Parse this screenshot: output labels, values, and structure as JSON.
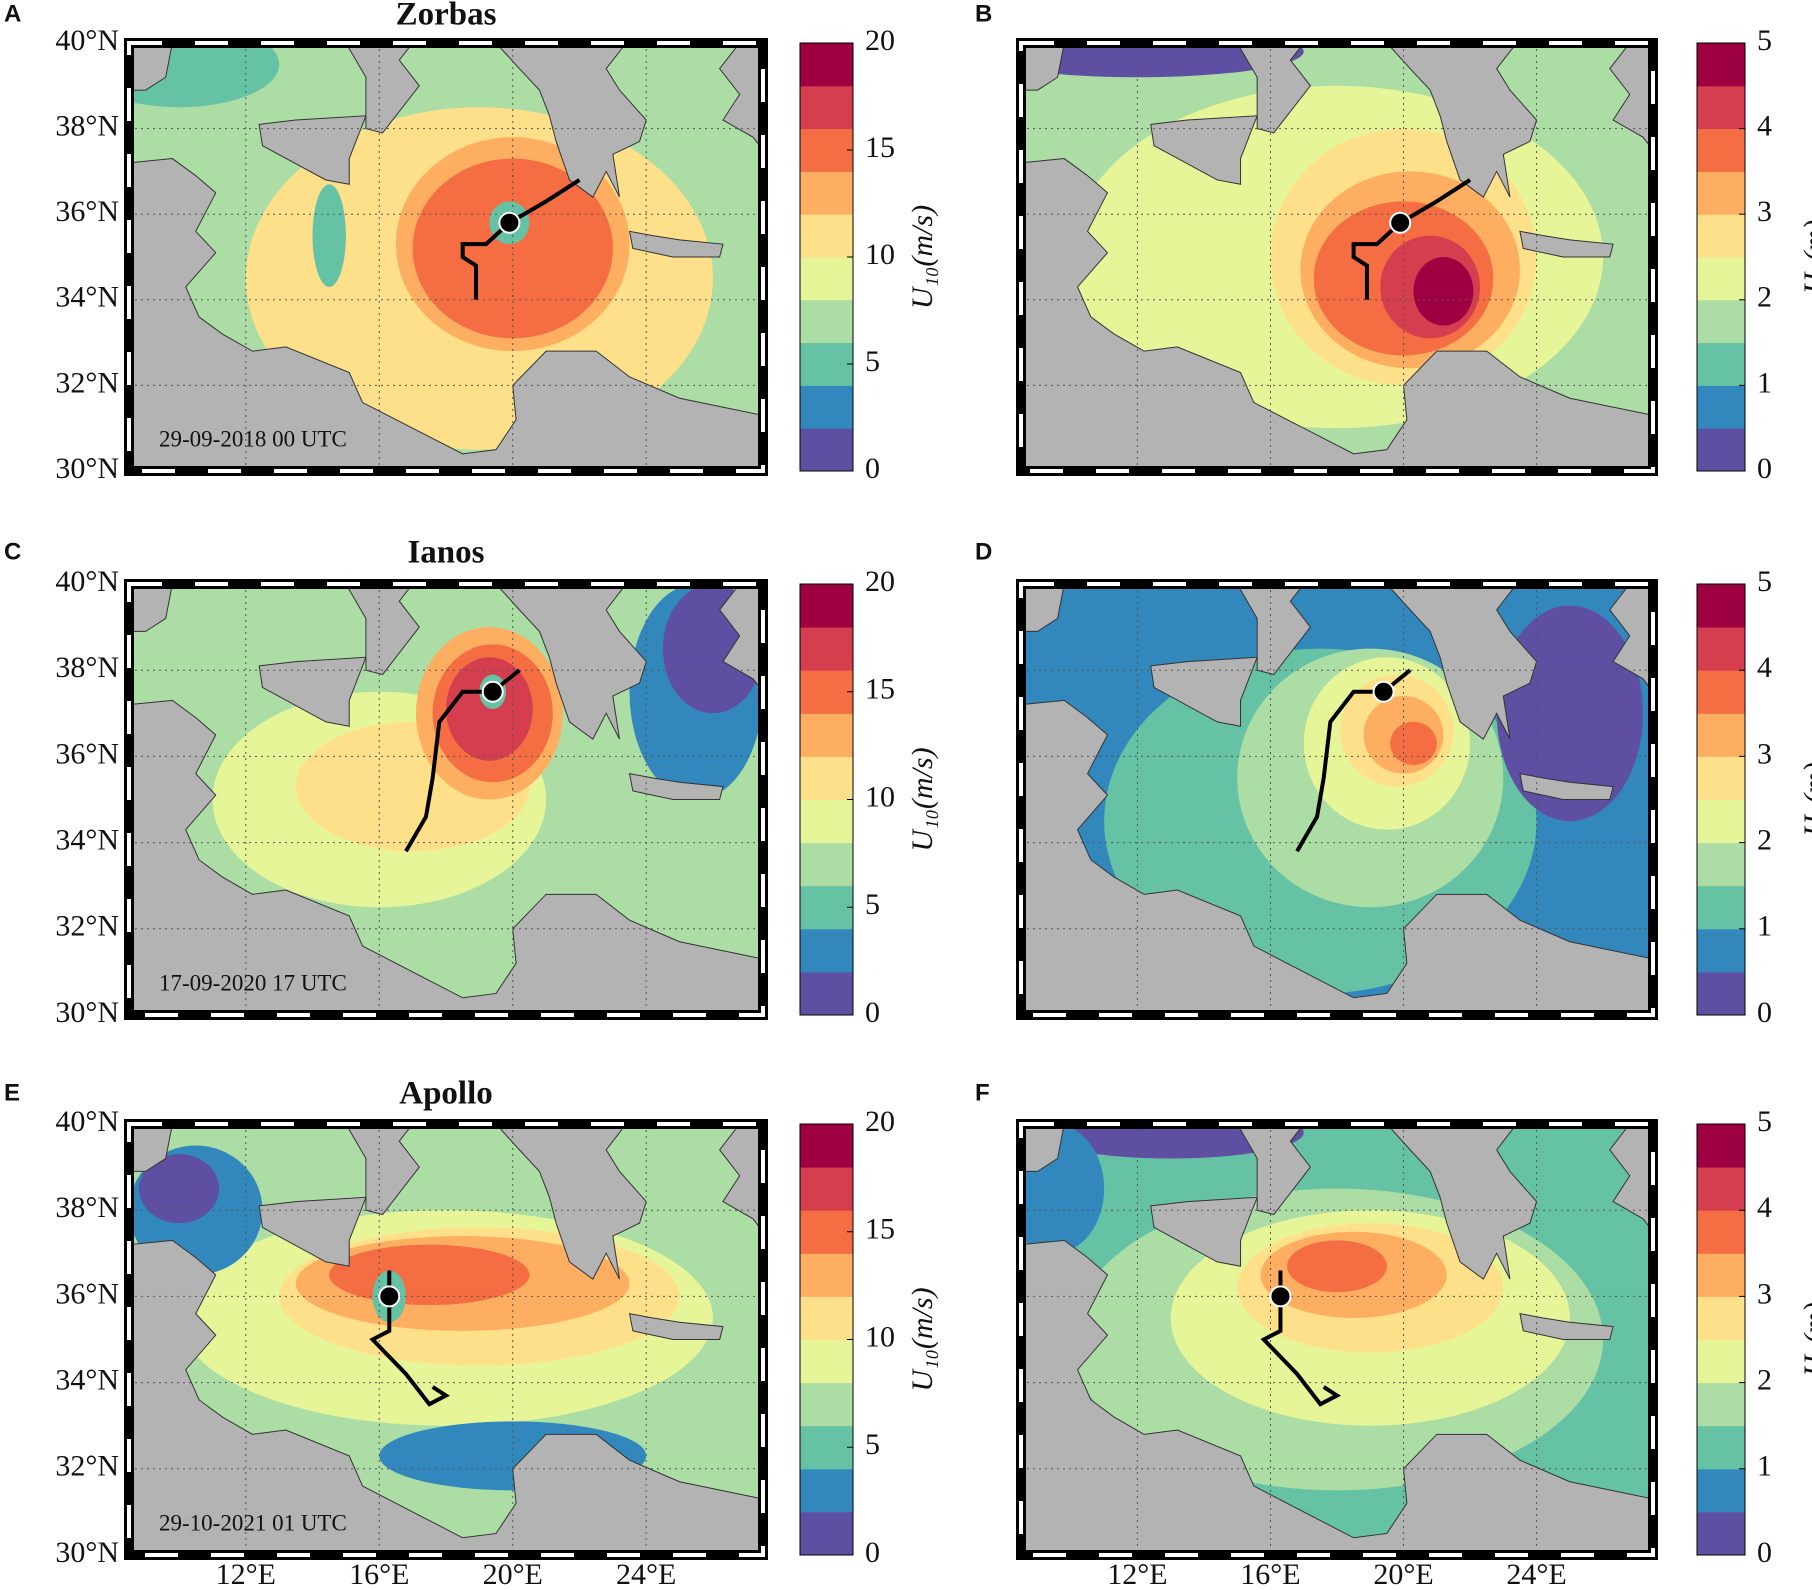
{
  "chart_data": [
    {
      "type": "map",
      "panel_label": "A",
      "title": "Zorbas",
      "annotation": "29-09-2018 00 UTC",
      "xlim": [
        8.5,
        27.5
      ],
      "ylim": [
        30,
        40
      ],
      "grid": true,
      "yticks": [
        {
          "value": 30,
          "label": "30°N"
        },
        {
          "value": 32,
          "label": "32°N"
        },
        {
          "value": 34,
          "label": "34°N"
        },
        {
          "value": 36,
          "label": "36°N"
        },
        {
          "value": 38,
          "label": "38°N"
        },
        {
          "value": 40,
          "label": "40°N"
        }
      ],
      "colorbar": {
        "label": "U₁₀(m/s)",
        "lim": [
          0,
          20
        ],
        "ticks": [
          0,
          5,
          10,
          15,
          20
        ],
        "colors": [
          "#5e4fa2",
          "#3288bd",
          "#66c2a5",
          "#abdda4",
          "#e6f598",
          "#fee08b",
          "#fdae61",
          "#f46d43",
          "#d53e4f",
          "#9e0142"
        ]
      }
    },
    {
      "type": "map",
      "panel_label": "B",
      "xlim": [
        8.5,
        27.5
      ],
      "ylim": [
        30,
        40
      ],
      "grid": true,
      "colorbar": {
        "label": "Hₛ(m)",
        "lim": [
          0,
          5
        ],
        "ticks": [
          0,
          1,
          2,
          3,
          4,
          5
        ],
        "colors": [
          "#5e4fa2",
          "#3288bd",
          "#66c2a5",
          "#abdda4",
          "#e6f598",
          "#fee08b",
          "#fdae61",
          "#f46d43",
          "#d53e4f",
          "#9e0142"
        ]
      }
    },
    {
      "type": "map",
      "panel_label": "C",
      "title": "Ianos",
      "annotation": "17-09-2020 17 UTC",
      "xlim": [
        8.5,
        27.5
      ],
      "ylim": [
        30,
        40
      ],
      "grid": true,
      "yticks": [
        {
          "value": 30,
          "label": "30°N"
        },
        {
          "value": 32,
          "label": "32°N"
        },
        {
          "value": 34,
          "label": "34°N"
        },
        {
          "value": 36,
          "label": "36°N"
        },
        {
          "value": 38,
          "label": "38°N"
        },
        {
          "value": 40,
          "label": "40°N"
        }
      ],
      "colorbar": {
        "label": "U₁₀(m/s)",
        "lim": [
          0,
          20
        ],
        "ticks": [
          0,
          5,
          10,
          15,
          20
        ],
        "colors": [
          "#5e4fa2",
          "#3288bd",
          "#66c2a5",
          "#abdda4",
          "#e6f598",
          "#fee08b",
          "#fdae61",
          "#f46d43",
          "#d53e4f",
          "#9e0142"
        ]
      }
    },
    {
      "type": "map",
      "panel_label": "D",
      "xlim": [
        8.5,
        27.5
      ],
      "ylim": [
        30,
        40
      ],
      "grid": true,
      "colorbar": {
        "label": "Hₛ(m)",
        "lim": [
          0,
          5
        ],
        "ticks": [
          0,
          1,
          2,
          3,
          4,
          5
        ],
        "colors": [
          "#5e4fa2",
          "#3288bd",
          "#66c2a5",
          "#abdda4",
          "#e6f598",
          "#fee08b",
          "#fdae61",
          "#f46d43",
          "#d53e4f",
          "#9e0142"
        ]
      }
    },
    {
      "type": "map",
      "panel_label": "E",
      "title": "Apollo",
      "annotation": "29-10-2021 01 UTC",
      "xlim": [
        8.5,
        27.5
      ],
      "ylim": [
        30,
        40
      ],
      "grid": true,
      "xticks": [
        {
          "value": 12,
          "label": "12°E"
        },
        {
          "value": 16,
          "label": "16°E"
        },
        {
          "value": 20,
          "label": "20°E"
        },
        {
          "value": 24,
          "label": "24°E"
        }
      ],
      "yticks": [
        {
          "value": 30,
          "label": "30°N"
        },
        {
          "value": 32,
          "label": "32°N"
        },
        {
          "value": 34,
          "label": "34°N"
        },
        {
          "value": 36,
          "label": "36°N"
        },
        {
          "value": 38,
          "label": "38°N"
        },
        {
          "value": 40,
          "label": "40°N"
        }
      ],
      "colorbar": {
        "label": "U₁₀(m/s)",
        "lim": [
          0,
          20
        ],
        "ticks": [
          0,
          5,
          10,
          15,
          20
        ],
        "colors": [
          "#5e4fa2",
          "#3288bd",
          "#66c2a5",
          "#abdda4",
          "#e6f598",
          "#fee08b",
          "#fdae61",
          "#f46d43",
          "#d53e4f",
          "#9e0142"
        ]
      }
    },
    {
      "type": "map",
      "panel_label": "F",
      "xlim": [
        8.5,
        27.5
      ],
      "ylim": [
        30,
        40
      ],
      "grid": true,
      "xticks": [
        {
          "value": 12,
          "label": "12°E"
        },
        {
          "value": 16,
          "label": "16°E"
        },
        {
          "value": 20,
          "label": "20°E"
        },
        {
          "value": 24,
          "label": "24°E"
        }
      ],
      "colorbar": {
        "label": "Hₛ(m)",
        "lim": [
          0,
          5
        ],
        "ticks": [
          0,
          1,
          2,
          3,
          4,
          5
        ],
        "colors": [
          "#5e4fa2",
          "#3288bd",
          "#66c2a5",
          "#abdda4",
          "#e6f598",
          "#fee08b",
          "#fdae61",
          "#f46d43",
          "#d53e4f",
          "#9e0142"
        ]
      }
    }
  ]
}
